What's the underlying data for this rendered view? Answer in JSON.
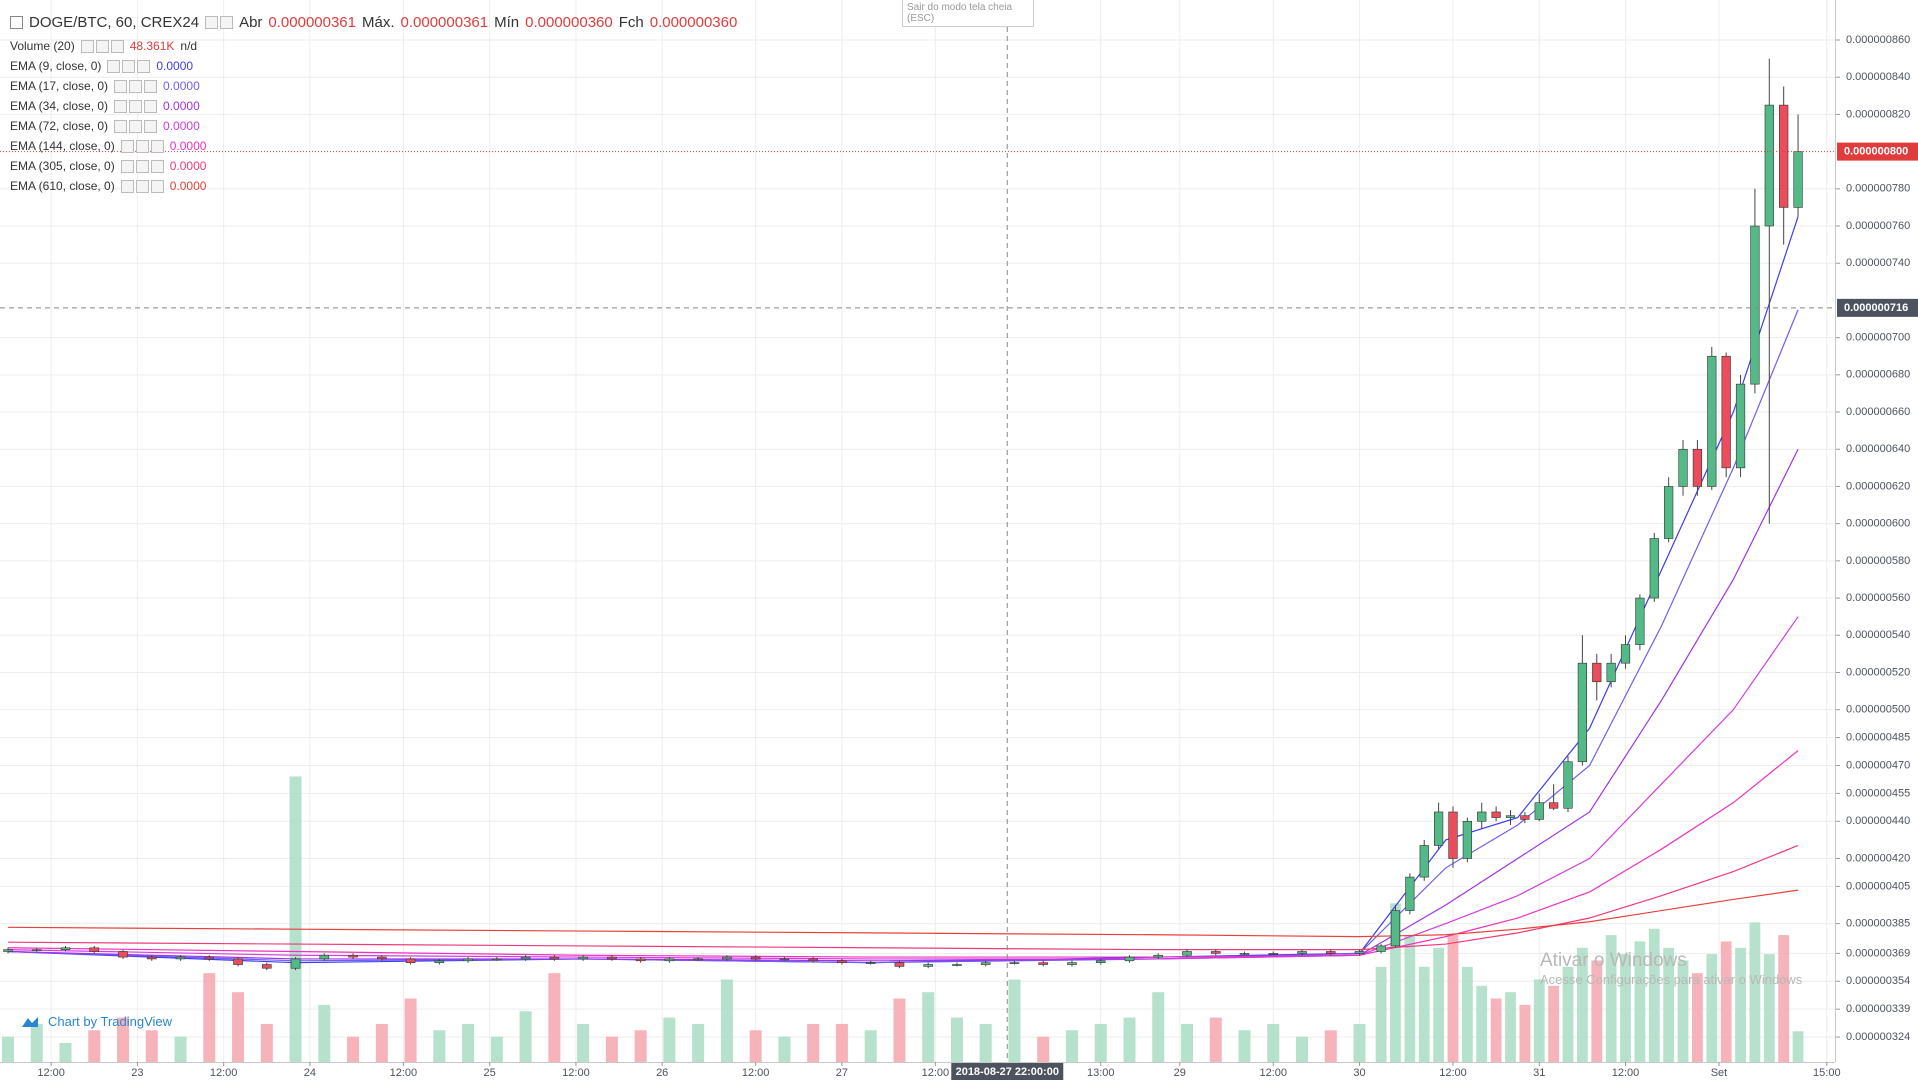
{
  "header": {
    "symbol": "DOGE/BTC, 60, CREX24",
    "ohlc": [
      {
        "label": "Abr",
        "value": "0.000000361"
      },
      {
        "label": "Máx.",
        "value": "0.000000361"
      },
      {
        "label": "Mín",
        "value": "0.000000360"
      },
      {
        "label": "Fch",
        "value": "0.000000360"
      }
    ]
  },
  "volume_legend": {
    "name": "Volume (20)",
    "value": "48.361K",
    "extra": "n/d"
  },
  "fullscreen_hint": "Sair do modo tela cheia (ESC)",
  "branding": "Chart by TradingView",
  "watermark": {
    "title": "Ativar o Windows",
    "subtitle": "Acesse Configurações para ativar o Windows"
  },
  "chart_data": {
    "type": "candlestick",
    "grid": true,
    "up_color": "#53b987",
    "down_color": "#eb4d5c",
    "volume_up_color": "#a9dcc3",
    "volume_down_color": "#f5a6ae",
    "xlim": [
      0,
      254
    ],
    "xticks": [
      {
        "value": 6,
        "label": "12:00"
      },
      {
        "value": 18,
        "label": "23"
      },
      {
        "value": 30,
        "label": "12:00"
      },
      {
        "value": 42,
        "label": "24"
      },
      {
        "value": 55,
        "label": "12:00"
      },
      {
        "value": 67,
        "label": "25"
      },
      {
        "value": 79,
        "label": "12:00"
      },
      {
        "value": 91,
        "label": "26"
      },
      {
        "value": 104,
        "label": "12:00"
      },
      {
        "value": 116,
        "label": "27"
      },
      {
        "value": 129,
        "label": "12:00"
      },
      {
        "value": 152,
        "label": "13:00"
      },
      {
        "value": 163,
        "label": "29"
      },
      {
        "value": 176,
        "label": "12:00"
      },
      {
        "value": 188,
        "label": "30"
      },
      {
        "value": 201,
        "label": "12:00"
      },
      {
        "value": 213,
        "label": "31"
      },
      {
        "value": 225,
        "label": "12:00"
      },
      {
        "value": 238,
        "label": "Set"
      },
      {
        "value": 253,
        "label": "15:00"
      }
    ],
    "ylim": [
      3.106e-07,
      8.815e-07
    ],
    "yticks": [
      {
        "value": 3.24e-07,
        "label": "0.000000324"
      },
      {
        "value": 3.39e-07,
        "label": "0.000000339"
      },
      {
        "value": 3.54e-07,
        "label": "0.000000354"
      },
      {
        "value": 3.69e-07,
        "label": "0.000000369"
      },
      {
        "value": 3.85e-07,
        "label": "0.000000385"
      },
      {
        "value": 4.05e-07,
        "label": "0.000000405"
      },
      {
        "value": 4.2e-07,
        "label": "0.000000420"
      },
      {
        "value": 4.4e-07,
        "label": "0.000000440"
      },
      {
        "value": 4.55e-07,
        "label": "0.000000455"
      },
      {
        "value": 4.7e-07,
        "label": "0.000000470"
      },
      {
        "value": 4.85e-07,
        "label": "0.000000485"
      },
      {
        "value": 5e-07,
        "label": "0.000000500"
      },
      {
        "value": 5.2e-07,
        "label": "0.000000520"
      },
      {
        "value": 5.4e-07,
        "label": "0.000000540"
      },
      {
        "value": 5.6e-07,
        "label": "0.000000560"
      },
      {
        "value": 5.8e-07,
        "label": "0.000000580"
      },
      {
        "value": 6e-07,
        "label": "0.000000600"
      },
      {
        "value": 6.2e-07,
        "label": "0.000000620"
      },
      {
        "value": 6.4e-07,
        "label": "0.000000640"
      },
      {
        "value": 6.6e-07,
        "label": "0.000000660"
      },
      {
        "value": 6.8e-07,
        "label": "0.000000680"
      },
      {
        "value": 7e-07,
        "label": "0.000000700"
      },
      {
        "value": 7.4e-07,
        "label": "0.000000740"
      },
      {
        "value": 7.6e-07,
        "label": "0.000000760"
      },
      {
        "value": 7.8e-07,
        "label": "0.000000780"
      },
      {
        "value": 8.2e-07,
        "label": "0.000000820"
      },
      {
        "value": 8.4e-07,
        "label": "0.000000840"
      },
      {
        "value": 8.6e-07,
        "label": "0.000000860"
      }
    ],
    "candles": {
      "x": [
        0,
        4,
        8,
        12,
        16,
        20,
        24,
        28,
        32,
        36,
        40,
        44,
        48,
        52,
        56,
        60,
        64,
        68,
        72,
        76,
        80,
        84,
        88,
        92,
        96,
        100,
        104,
        108,
        112,
        116,
        120,
        124,
        128,
        132,
        136,
        140,
        144,
        148,
        152,
        156,
        160,
        164,
        168,
        172,
        176,
        180,
        184,
        188,
        191,
        193,
        195,
        197,
        199,
        201,
        203,
        205,
        207,
        209,
        211,
        213,
        215,
        217,
        219,
        221,
        223,
        225,
        227,
        229,
        231,
        233,
        235,
        237,
        239,
        241,
        243,
        245,
        247,
        249
      ],
      "open": [
        3.7e-07,
        3.71e-07,
        3.71e-07,
        3.72e-07,
        3.7e-07,
        3.67e-07,
        3.66e-07,
        3.67e-07,
        3.66e-07,
        3.63e-07,
        3.61e-07,
        3.66e-07,
        3.68e-07,
        3.67e-07,
        3.66e-07,
        3.64e-07,
        3.65e-07,
        3.66e-07,
        3.66e-07,
        3.67e-07,
        3.66e-07,
        3.67e-07,
        3.66e-07,
        3.65e-07,
        3.66e-07,
        3.66e-07,
        3.67e-07,
        3.66e-07,
        3.66e-07,
        3.65e-07,
        3.64e-07,
        3.64e-07,
        3.62e-07,
        3.63e-07,
        3.63e-07,
        3.64e-07,
        3.64e-07,
        3.63e-07,
        3.64e-07,
        3.65e-07,
        3.67e-07,
        3.68e-07,
        3.7e-07,
        3.69e-07,
        3.69e-07,
        3.69e-07,
        3.7e-07,
        3.69e-07,
        3.7e-07,
        3.73e-07,
        3.92e-07,
        4.1e-07,
        4.27e-07,
        4.45e-07,
        4.2e-07,
        4.4e-07,
        4.45e-07,
        4.42e-07,
        4.43e-07,
        4.41e-07,
        4.5e-07,
        4.47e-07,
        4.72e-07,
        5.25e-07,
        5.15e-07,
        5.25e-07,
        5.35e-07,
        5.6e-07,
        5.92e-07,
        6.2e-07,
        6.4e-07,
        6.2e-07,
        6.9e-07,
        6.3e-07,
        6.75e-07,
        7.6e-07,
        8.25e-07,
        7.7e-07
      ],
      "high": [
        3.72e-07,
        3.72e-07,
        3.73e-07,
        3.73e-07,
        3.71e-07,
        3.68e-07,
        3.68e-07,
        3.68e-07,
        3.67e-07,
        3.64e-07,
        3.67e-07,
        3.69e-07,
        3.69e-07,
        3.68e-07,
        3.67e-07,
        3.66e-07,
        3.67e-07,
        3.67e-07,
        3.68e-07,
        3.68e-07,
        3.68e-07,
        3.68e-07,
        3.67e-07,
        3.67e-07,
        3.67e-07,
        3.68e-07,
        3.68e-07,
        3.67e-07,
        3.67e-07,
        3.66e-07,
        3.65e-07,
        3.65e-07,
        3.64e-07,
        3.64e-07,
        3.65e-07,
        3.65e-07,
        3.65e-07,
        3.65e-07,
        3.66e-07,
        3.68e-07,
        3.69e-07,
        3.71e-07,
        3.71e-07,
        3.7e-07,
        3.7e-07,
        3.71e-07,
        3.71e-07,
        3.71e-07,
        3.74e-07,
        3.95e-07,
        4.12e-07,
        4.3e-07,
        4.5e-07,
        4.48e-07,
        4.42e-07,
        4.5e-07,
        4.48e-07,
        4.46e-07,
        4.45e-07,
        4.55e-07,
        4.6e-07,
        4.75e-07,
        5.4e-07,
        5.3e-07,
        5.3e-07,
        5.4e-07,
        5.62e-07,
        5.95e-07,
        6.25e-07,
        6.45e-07,
        6.45e-07,
        6.95e-07,
        6.92e-07,
        6.8e-07,
        7.8e-07,
        8.5e-07,
        8.35e-07,
        8.2e-07
      ],
      "low": [
        3.69e-07,
        3.7e-07,
        3.7e-07,
        3.69e-07,
        3.66e-07,
        3.65e-07,
        3.65e-07,
        3.65e-07,
        3.62e-07,
        3.6e-07,
        3.6e-07,
        3.65e-07,
        3.66e-07,
        3.65e-07,
        3.63e-07,
        3.63e-07,
        3.64e-07,
        3.65e-07,
        3.65e-07,
        3.65e-07,
        3.65e-07,
        3.65e-07,
        3.64e-07,
        3.64e-07,
        3.65e-07,
        3.65e-07,
        3.65e-07,
        3.65e-07,
        3.64e-07,
        3.63e-07,
        3.63e-07,
        3.61e-07,
        3.61e-07,
        3.62e-07,
        3.62e-07,
        3.63e-07,
        3.62e-07,
        3.62e-07,
        3.63e-07,
        3.64e-07,
        3.66e-07,
        3.67e-07,
        3.68e-07,
        3.68e-07,
        3.68e-07,
        3.68e-07,
        3.68e-07,
        3.68e-07,
        3.69e-07,
        3.72e-07,
        3.9e-07,
        4.08e-07,
        4.25e-07,
        4.15e-07,
        4.18e-07,
        4.36e-07,
        4.4e-07,
        4.38e-07,
        4.39e-07,
        4.4e-07,
        4.46e-07,
        4.45e-07,
        4.7e-07,
        5.05e-07,
        5.12e-07,
        5.22e-07,
        5.32e-07,
        5.58e-07,
        5.9e-07,
        6.15e-07,
        6.15e-07,
        6.18e-07,
        6.25e-07,
        6.25e-07,
        6.7e-07,
        6e-07,
        7.5e-07,
        7.65e-07
      ],
      "close": [
        3.71e-07,
        3.71e-07,
        3.72e-07,
        3.7e-07,
        3.67e-07,
        3.66e-07,
        3.67e-07,
        3.66e-07,
        3.63e-07,
        3.61e-07,
        3.66e-07,
        3.68e-07,
        3.67e-07,
        3.66e-07,
        3.64e-07,
        3.65e-07,
        3.66e-07,
        3.66e-07,
        3.67e-07,
        3.66e-07,
        3.67e-07,
        3.66e-07,
        3.65e-07,
        3.66e-07,
        3.66e-07,
        3.67e-07,
        3.66e-07,
        3.66e-07,
        3.65e-07,
        3.64e-07,
        3.64e-07,
        3.62e-07,
        3.63e-07,
        3.63e-07,
        3.64e-07,
        3.64e-07,
        3.63e-07,
        3.64e-07,
        3.65e-07,
        3.67e-07,
        3.68e-07,
        3.7e-07,
        3.69e-07,
        3.69e-07,
        3.69e-07,
        3.7e-07,
        3.69e-07,
        3.7e-07,
        3.73e-07,
        3.92e-07,
        4.1e-07,
        4.27e-07,
        4.45e-07,
        4.2e-07,
        4.4e-07,
        4.45e-07,
        4.42e-07,
        4.43e-07,
        4.41e-07,
        4.5e-07,
        4.47e-07,
        4.72e-07,
        5.25e-07,
        5.15e-07,
        5.25e-07,
        5.35e-07,
        5.6e-07,
        5.92e-07,
        6.2e-07,
        6.4e-07,
        6.2e-07,
        6.9e-07,
        6.3e-07,
        6.75e-07,
        7.6e-07,
        8.25e-07,
        7.7e-07,
        8e-07
      ],
      "volume": [
        40000,
        60000,
        30000,
        50000,
        70000,
        50000,
        40000,
        140000,
        110000,
        60000,
        450000,
        90000,
        40000,
        60000,
        100000,
        50000,
        60000,
        40000,
        80000,
        140000,
        60000,
        40000,
        50000,
        70000,
        60000,
        130000,
        50000,
        40000,
        60000,
        60000,
        50000,
        100000,
        110000,
        70000,
        60000,
        130000,
        40000,
        50000,
        60000,
        70000,
        110000,
        60000,
        70000,
        50000,
        60000,
        40000,
        50000,
        60000,
        150000,
        250000,
        200000,
        150000,
        180000,
        200000,
        150000,
        120000,
        100000,
        110000,
        90000,
        130000,
        120000,
        150000,
        180000,
        160000,
        200000,
        170000,
        190000,
        210000,
        180000,
        160000,
        140000,
        170000,
        190000,
        180000,
        220000,
        170000,
        200000,
        48361
      ]
    },
    "volume_lim": [
      0,
      520000
    ],
    "ema_x": [
      0,
      40,
      80,
      120,
      160,
      188,
      200,
      210,
      220,
      230,
      240,
      249
    ],
    "series": [
      {
        "name": "EMA (9, close, 0)",
        "legend_value": "0.0000",
        "color": "#3c3cf5",
        "values": [
          3.7e-07,
          3.64e-07,
          3.66e-07,
          3.64e-07,
          3.67e-07,
          3.69e-07,
          4.3e-07,
          4.42e-07,
          4.9e-07,
          5.75e-07,
          6.6e-07,
          7.65e-07
        ]
      },
      {
        "name": "EMA (17, close, 0)",
        "legend_value": "0.0000",
        "color": "#6f5ff0",
        "values": [
          3.7e-07,
          3.65e-07,
          3.66e-07,
          3.64e-07,
          3.66e-07,
          3.69e-07,
          4.15e-07,
          4.38e-07,
          4.7e-07,
          5.45e-07,
          6.3e-07,
          7.15e-07
        ]
      },
      {
        "name": "EMA (34, close, 0)",
        "legend_value": "0.0000",
        "color": "#a033e8",
        "values": [
          3.7e-07,
          3.66e-07,
          3.66e-07,
          3.65e-07,
          3.66e-07,
          3.68e-07,
          3.95e-07,
          4.2e-07,
          4.45e-07,
          5.05e-07,
          5.7e-07,
          6.4e-07
        ]
      },
      {
        "name": "EMA (72, close, 0)",
        "legend_value": "0.0000",
        "color": "#d43ce0",
        "values": [
          3.71e-07,
          3.68e-07,
          3.67e-07,
          3.66e-07,
          3.66e-07,
          3.68e-07,
          3.85e-07,
          4e-07,
          4.2e-07,
          4.6e-07,
          5e-07,
          5.5e-07
        ]
      },
      {
        "name": "EMA (144, close, 0)",
        "legend_value": "0.0000",
        "color": "#f030c0",
        "values": [
          3.72e-07,
          3.7e-07,
          3.68e-07,
          3.67e-07,
          3.67e-07,
          3.68e-07,
          3.78e-07,
          3.88e-07,
          4.02e-07,
          4.25e-07,
          4.5e-07,
          4.78e-07
        ]
      },
      {
        "name": "EMA (305, close, 0)",
        "legend_value": "0.0000",
        "color": "#f03a78",
        "values": [
          3.75e-07,
          3.74e-07,
          3.73e-07,
          3.72e-07,
          3.71e-07,
          3.71e-07,
          3.74e-07,
          3.8e-07,
          3.88e-07,
          4e-07,
          4.13e-07,
          4.27e-07
        ]
      },
      {
        "name": "EMA (610, close, 0)",
        "legend_value": "0.0000",
        "color": "#e8403c",
        "values": [
          3.83e-07,
          3.82e-07,
          3.81e-07,
          3.8e-07,
          3.79e-07,
          3.78e-07,
          3.79e-07,
          3.82e-07,
          3.86e-07,
          3.92e-07,
          3.98e-07,
          4.03e-07
        ]
      }
    ],
    "last_price": {
      "value": 8e-07,
      "label": "0.000000800"
    },
    "crosshair": {
      "x": 139,
      "x_label": "2018-08-27 22:00:00",
      "y": {
        "value": 7.16e-07,
        "label": "0.000000716"
      }
    }
  }
}
